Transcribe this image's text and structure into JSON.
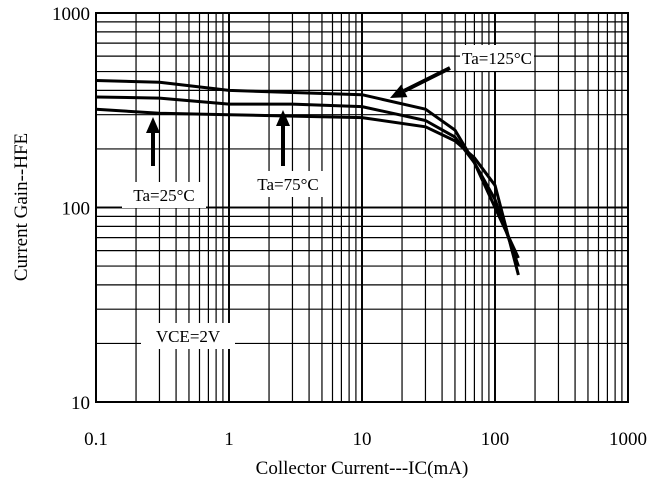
{
  "chart_data": {
    "type": "line",
    "xlabel": "Collector Current---IC(mA)",
    "ylabel": "Current Gain--HFE",
    "x_scale": "log",
    "y_scale": "log",
    "xlim": [
      0.1,
      1000
    ],
    "ylim": [
      10,
      1000
    ],
    "x_ticks": [
      "0.1",
      "1",
      "10",
      "100",
      "1000"
    ],
    "y_ticks": [
      "10",
      "100",
      "1000"
    ],
    "grid": true,
    "series": [
      {
        "name": "Ta=125°C",
        "x": [
          0.1,
          0.3,
          1,
          3,
          10,
          30,
          50,
          70,
          100,
          150
        ],
        "y": [
          450,
          440,
          400,
          390,
          380,
          320,
          250,
          170,
          100,
          55
        ]
      },
      {
        "name": "Ta=75°C",
        "x": [
          0.1,
          0.3,
          1,
          3,
          10,
          30,
          50,
          70,
          100,
          150
        ],
        "y": [
          370,
          365,
          340,
          340,
          330,
          280,
          230,
          170,
          110,
          50
        ]
      },
      {
        "name": "Ta=25°C",
        "x": [
          0.1,
          0.3,
          1,
          3,
          10,
          30,
          50,
          70,
          100,
          150
        ],
        "y": [
          320,
          305,
          300,
          295,
          290,
          260,
          220,
          180,
          130,
          45
        ]
      }
    ],
    "annotations": [
      {
        "text": "Ta=125°C",
        "series": 0
      },
      {
        "text": "Ta=75°C",
        "series": 1
      },
      {
        "text": "Ta=25°C",
        "series": 2
      },
      {
        "text": "VCE=2V"
      }
    ]
  }
}
